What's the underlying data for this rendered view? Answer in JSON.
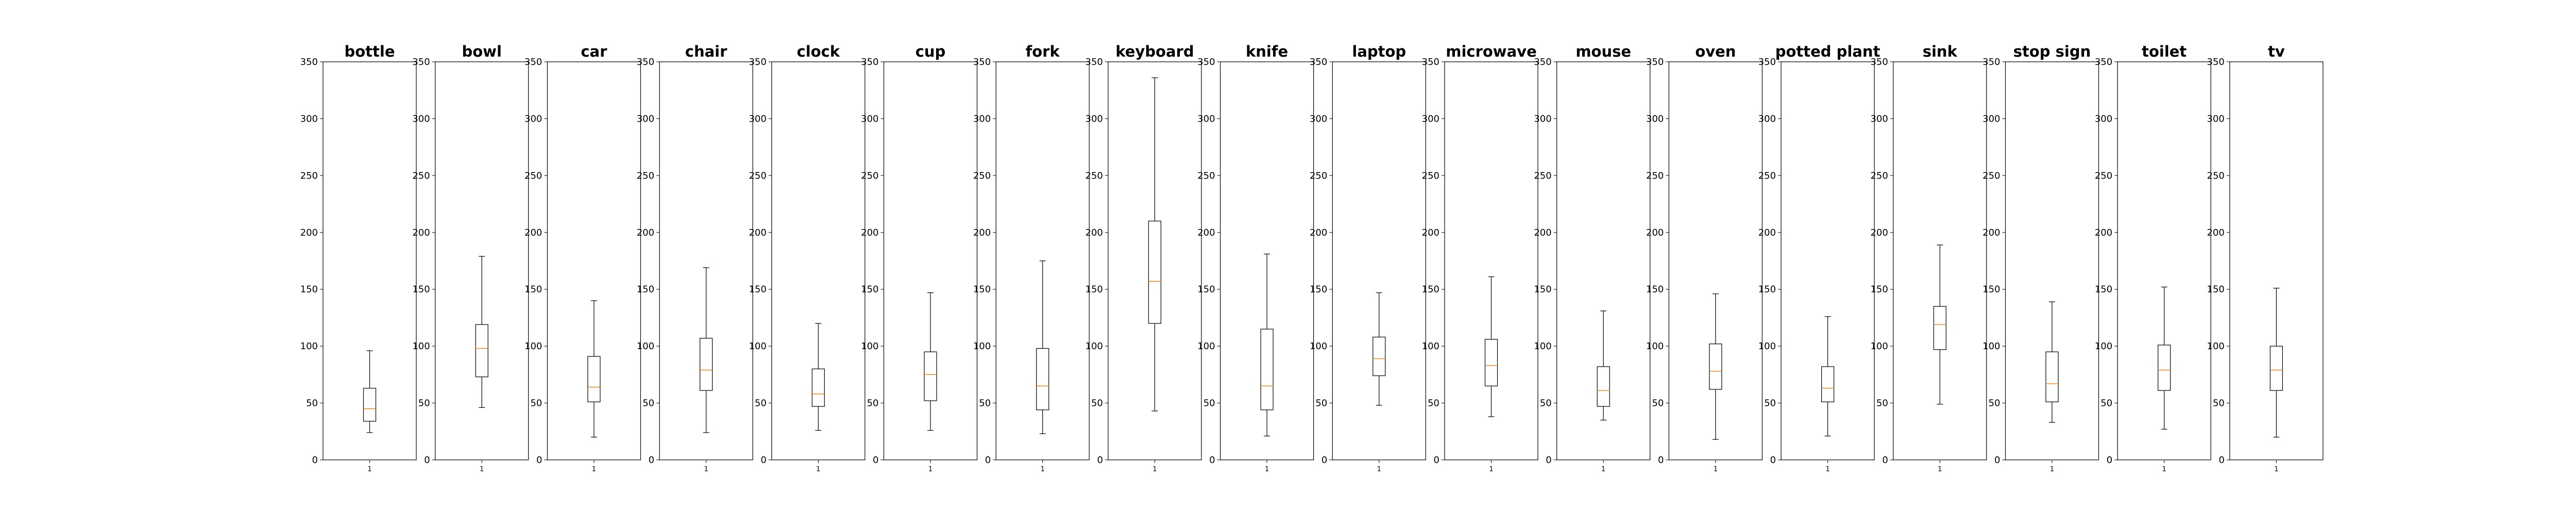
{
  "chart_data": {
    "type": "box",
    "ylim": [
      0,
      350
    ],
    "yticks": [
      0,
      50,
      100,
      150,
      200,
      250,
      300,
      350
    ],
    "xtick_label": "1",
    "grid": false,
    "colors": {
      "box": "#000000",
      "median": "#ff7f0e",
      "frame": "#000000"
    },
    "panels": [
      {
        "title": "bottle",
        "whislo": 24,
        "q1": 34,
        "med": 45,
        "q3": 63,
        "whishi": 96
      },
      {
        "title": "bowl",
        "whislo": 46,
        "q1": 73,
        "med": 98,
        "q3": 119,
        "whishi": 179
      },
      {
        "title": "car",
        "whislo": 20,
        "q1": 51,
        "med": 64,
        "q3": 91,
        "whishi": 140
      },
      {
        "title": "chair",
        "whislo": 24,
        "q1": 61,
        "med": 79,
        "q3": 107,
        "whishi": 169
      },
      {
        "title": "clock",
        "whislo": 26,
        "q1": 47,
        "med": 58,
        "q3": 80,
        "whishi": 120
      },
      {
        "title": "cup",
        "whislo": 26,
        "q1": 52,
        "med": 75,
        "q3": 95,
        "whishi": 147
      },
      {
        "title": "fork",
        "whislo": 23,
        "q1": 44,
        "med": 65,
        "q3": 98,
        "whishi": 175
      },
      {
        "title": "keyboard",
        "whislo": 43,
        "q1": 120,
        "med": 157,
        "q3": 210,
        "whishi": 336
      },
      {
        "title": "knife",
        "whislo": 21,
        "q1": 44,
        "med": 65,
        "q3": 115,
        "whishi": 181
      },
      {
        "title": "laptop",
        "whislo": 48,
        "q1": 74,
        "med": 89,
        "q3": 108,
        "whishi": 147
      },
      {
        "title": "microwave",
        "whislo": 38,
        "q1": 65,
        "med": 83,
        "q3": 106,
        "whishi": 161
      },
      {
        "title": "mouse",
        "whislo": 35,
        "q1": 47,
        "med": 61,
        "q3": 82,
        "whishi": 131
      },
      {
        "title": "oven",
        "whislo": 18,
        "q1": 62,
        "med": 78,
        "q3": 102,
        "whishi": 146
      },
      {
        "title": "potted plant",
        "whislo": 21,
        "q1": 51,
        "med": 63,
        "q3": 82,
        "whishi": 126
      },
      {
        "title": "sink",
        "whislo": 49,
        "q1": 97,
        "med": 119,
        "q3": 135,
        "whishi": 189
      },
      {
        "title": "stop sign",
        "whislo": 33,
        "q1": 51,
        "med": 67,
        "q3": 95,
        "whishi": 139
      },
      {
        "title": "toilet",
        "whislo": 27,
        "q1": 61,
        "med": 79,
        "q3": 101,
        "whishi": 152
      },
      {
        "title": "tv",
        "whislo": 20,
        "q1": 61,
        "med": 79,
        "q3": 100,
        "whishi": 151
      }
    ]
  }
}
